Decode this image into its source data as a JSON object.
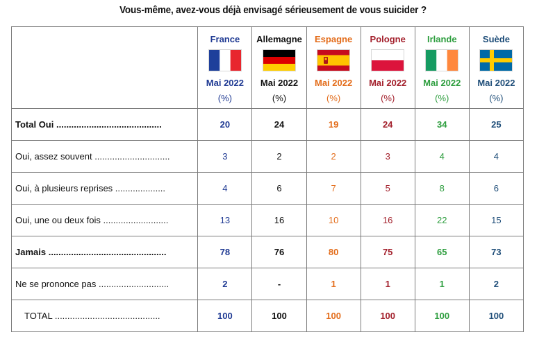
{
  "title": "Vous-même, avez-vous déjà envisagé sérieusement de vous suicider ?",
  "countries": [
    {
      "name": "France",
      "period": "Mai 2022",
      "unit": "(%)",
      "color": "#1f3a93",
      "flag": "france"
    },
    {
      "name": "Allemagne",
      "period": "Mai 2022",
      "unit": "(%)",
      "color": "#111111",
      "flag": "germany"
    },
    {
      "name": "Espagne",
      "period": "Mai 2022",
      "unit": "(%)",
      "color": "#e36c1a",
      "flag": "spain"
    },
    {
      "name": "Pologne",
      "period": "Mai 2022",
      "unit": "(%)",
      "color": "#a3202c",
      "flag": "poland"
    },
    {
      "name": "Irlande",
      "period": "Mai 2022",
      "unit": "(%)",
      "color": "#2e9e3f",
      "flag": "ireland"
    },
    {
      "name": "Suède",
      "period": "Mai 2022",
      "unit": "(%)",
      "color": "#1f4e79",
      "flag": "sweden"
    }
  ],
  "rows": [
    {
      "label": "Total Oui",
      "dots": "..........................................",
      "bold": true,
      "values": [
        "20",
        "24",
        "19",
        "24",
        "34",
        "25"
      ]
    },
    {
      "label": "Oui, assez souvent",
      "dots": "..............................",
      "bold": false,
      "values": [
        "3",
        "2",
        "2",
        "3",
        "4",
        "4"
      ]
    },
    {
      "label": "Oui, à plusieurs reprises",
      "dots": "....................",
      "bold": false,
      "values": [
        "4",
        "6",
        "7",
        "5",
        "8",
        "6"
      ]
    },
    {
      "label": "Oui, une ou deux fois",
      "dots": "..........................",
      "bold": false,
      "values": [
        "13",
        "16",
        "10",
        "16",
        "22",
        "15"
      ]
    },
    {
      "label": "Jamais",
      "dots": "...............................................",
      "bold": true,
      "values": [
        "78",
        "76",
        "80",
        "75",
        "65",
        "73"
      ]
    },
    {
      "label": "Ne se prononce pas",
      "dots": "............................",
      "bold": false,
      "bold_values": true,
      "values": [
        "2",
        "-",
        "1",
        "1",
        "1",
        "2"
      ]
    },
    {
      "label": "TOTAL",
      "dots": "..........................................",
      "bold": false,
      "bold_values": true,
      "indent": true,
      "values": [
        "100",
        "100",
        "100",
        "100",
        "100",
        "100"
      ]
    }
  ]
}
